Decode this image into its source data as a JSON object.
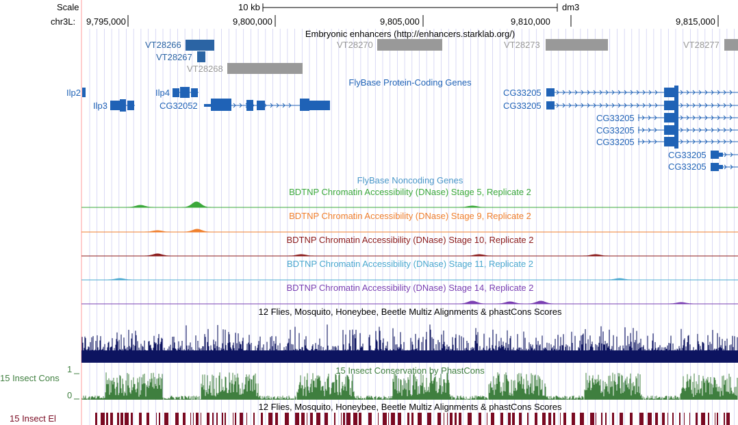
{
  "colors": {
    "gene": "#1f62b6",
    "enh_dark": "#2b64a4",
    "enh_gray": "#999999",
    "dnase5": "#3aa83a",
    "dnase9": "#f07f2c",
    "dnase10": "#8b1a1a",
    "dnase11": "#4aa8cf",
    "dnase14": "#7a3fb2",
    "multiz": "#0d1460",
    "phastcons": "#3f7f3f",
    "elements": "#7a0a22",
    "noncoding_title": "#4a97c9",
    "grid": "#c9c9f0",
    "left_border": "#ff9c9c"
  },
  "scale": {
    "label": "Scale",
    "bar_label": "10 kb",
    "assembly": "dm3"
  },
  "ruler": {
    "chrom_label": "chr3L:",
    "ticks": [
      "9,795,000",
      "9,800,000",
      "9,805,000",
      "9,810,000",
      "9,815,000"
    ]
  },
  "enhancers": {
    "title": "Embryonic enhancers (http://enhancers.starklab.org/)",
    "items": [
      {
        "name": "VT28266",
        "style": "dark"
      },
      {
        "name": "VT28267",
        "style": "dark"
      },
      {
        "name": "VT28268",
        "style": "gray"
      },
      {
        "name": "VT28270",
        "style": "gray"
      },
      {
        "name": "VT28273",
        "style": "gray"
      },
      {
        "name": "VT28277",
        "style": "gray"
      }
    ]
  },
  "genes": {
    "title": "FlyBase Protein-Coding Genes",
    "items": [
      "Ilp2",
      "Ilp3",
      "Ilp4",
      "CG32052",
      "CG33205",
      "CG33205",
      "CG33205",
      "CG33205",
      "CG33205",
      "CG33205",
      "CG33205"
    ]
  },
  "noncoding": {
    "title": "FlyBase Noncoding Genes"
  },
  "dnase_tracks": [
    {
      "title": "BDTNP Chromatin Accessibility (DNase) Stage 5, Replicate 2",
      "color_key": "dnase5"
    },
    {
      "title": "BDTNP Chromatin Accessibility (DNase) Stage 9, Replicate 2",
      "color_key": "dnase9"
    },
    {
      "title": "BDTNP Chromatin Accessibility (DNase) Stage 10, Replicate 2",
      "color_key": "dnase10"
    },
    {
      "title": "BDTNP Chromatin Accessibility (DNase) Stage 11, Replicate 2",
      "color_key": "dnase11"
    },
    {
      "title": "BDTNP Chromatin Accessibility (DNase) Stage 14, Replicate 2",
      "color_key": "dnase14"
    }
  ],
  "multiz": {
    "title": "12 Flies, Mosquito, Honeybee, Beetle Multiz Alignments & phastCons Scores"
  },
  "phastcons": {
    "title": "15 Insect Conservation by PhastCons",
    "side_label": "15 Insect Cons",
    "ymax": "1",
    "ymin": "0"
  },
  "elements": {
    "title": "12 Flies, Mosquito, Honeybee, Beetle Multiz Alignments & phastCons Scores",
    "side_label": "15 Insect El"
  }
}
